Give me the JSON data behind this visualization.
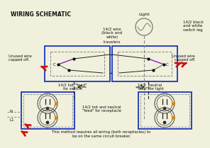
{
  "title": "WIRING SCHEMATIC",
  "bg_color": "#f0f0dc",
  "footer": "This method requires all wiring (both receptacles) to\nbe on the same circuit breaker.",
  "box_blue": "#1a35bb",
  "dashed_gray": "#888888",
  "wire_black": "#222222",
  "wire_purple": "#8822bb",
  "wire_gray": "#777777",
  "red_color": "#cc1111",
  "labels": {
    "wire_travelers": "14/2 wire\n(black and\nwhite)\ntravelers",
    "switch_leg": "14/2 black\nand white\nswitch leg",
    "hot_feed_switch": "14/2 hot \"feed\"\nfor switch",
    "neutral_feed_light": "14/2  neutral\n\"feed\" for light",
    "hot_neutral_feed": "14/2 hot and neutral\n\"feed\" for receptacle",
    "unused_left": "Unused wire\ncapped off.",
    "unused_right": "Unused wire\ncapped off.",
    "light": "Light",
    "N": "N",
    "L1": "L1"
  }
}
